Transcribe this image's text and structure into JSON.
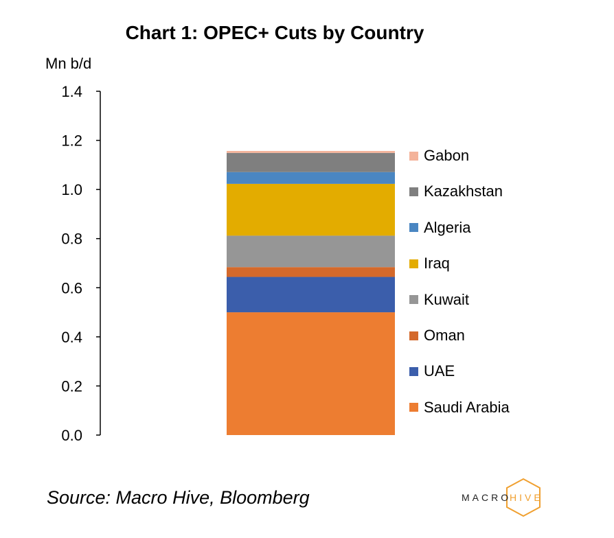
{
  "chart_data": {
    "type": "bar",
    "stacked": true,
    "title": "Chart 1: OPEC+ Cuts by Country",
    "ylabel": "Mn b/d",
    "ylim": [
      0,
      1.4
    ],
    "yticks": [
      "0.0",
      "0.2",
      "0.4",
      "0.6",
      "0.8",
      "1.0",
      "1.2",
      "1.4"
    ],
    "ytick_values": [
      0,
      0.2,
      0.4,
      0.6,
      0.8,
      1.0,
      1.2,
      1.4
    ],
    "categories": [
      ""
    ],
    "legend_position": "right",
    "grid": false,
    "series": [
      {
        "name": "Saudi Arabia",
        "values": [
          0.5
        ],
        "color": "#ED7D31"
      },
      {
        "name": "UAE",
        "values": [
          0.144
        ],
        "color": "#3B5EAB"
      },
      {
        "name": "Oman",
        "values": [
          0.04
        ],
        "color": "#D4692B"
      },
      {
        "name": "Kuwait",
        "values": [
          0.128
        ],
        "color": "#969696"
      },
      {
        "name": "Iraq",
        "values": [
          0.211
        ],
        "color": "#E3AC00"
      },
      {
        "name": "Algeria",
        "values": [
          0.048
        ],
        "color": "#4A86C2"
      },
      {
        "name": "Kazakhstan",
        "values": [
          0.078
        ],
        "color": "#7F7F7F"
      },
      {
        "name": "Gabon",
        "values": [
          0.008
        ],
        "color": "#F4B39A"
      }
    ]
  },
  "footer": {
    "source": "Source: Macro Hive, Bloomberg",
    "logo_left": "MACRO",
    "logo_right": "HIVE",
    "logo_color": "#F0A030"
  }
}
